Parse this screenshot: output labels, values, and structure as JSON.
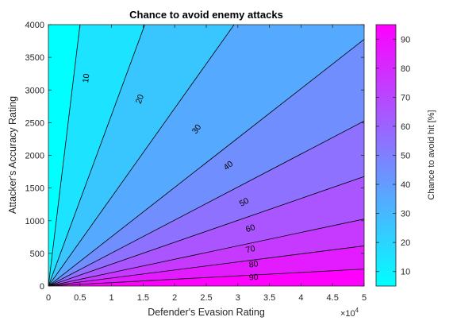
{
  "chart_data": {
    "type": "contourf",
    "title": "Chance to avoid enemy attacks",
    "xlabel": "Defender's Evasion Rating",
    "ylabel": "Attacker's Accuracy Rating",
    "xlim": [
      0,
      50000
    ],
    "ylim": [
      0,
      4000
    ],
    "x_ticks": [
      0,
      5000,
      10000,
      15000,
      20000,
      25000,
      30000,
      35000,
      40000,
      45000,
      50000
    ],
    "x_tick_labels": [
      "0",
      "0.5",
      "1",
      "1.5",
      "2",
      "2.5",
      "3",
      "3.5",
      "4",
      "4.5",
      "5"
    ],
    "x_exponent": {
      "base": "×10",
      "power": "4"
    },
    "y_ticks": [
      0,
      500,
      1000,
      1500,
      2000,
      2500,
      3000,
      3500,
      4000
    ],
    "y_tick_labels": [
      "0",
      "500",
      "1000",
      "1500",
      "2000",
      "2500",
      "3000",
      "3500",
      "4000"
    ],
    "contour_levels": [
      10,
      20,
      30,
      40,
      50,
      60,
      70,
      80,
      90
    ],
    "contour_labels": [
      "10",
      "20",
      "30",
      "40",
      "50",
      "60",
      "70",
      "80",
      "90"
    ],
    "contour_label_positions": [
      {
        "level": 10,
        "x": 6000,
        "y": 3180
      },
      {
        "level": 20,
        "x": 14500,
        "y": 2860
      },
      {
        "level": 30,
        "x": 23500,
        "y": 2400
      },
      {
        "level": 40,
        "x": 28500,
        "y": 1840
      },
      {
        "level": 50,
        "x": 31000,
        "y": 1280
      },
      {
        "level": 60,
        "x": 32000,
        "y": 880
      },
      {
        "level": 70,
        "x": 32000,
        "y": 560
      },
      {
        "level": 80,
        "x": 32500,
        "y": 330
      },
      {
        "level": 90,
        "x": 32500,
        "y": 130
      }
    ],
    "contour_slope_ratios": {
      "10": 0.8,
      "20": 0.262,
      "30": 0.136,
      "40": 0.0755,
      "50": 0.0505,
      "60": 0.0335,
      "70": 0.0205,
      "80": 0.0123,
      "90": 0.0052
    },
    "colorbar": {
      "label": "Chance to avoid hit [%]",
      "range": [
        5,
        95
      ],
      "ticks": [
        10,
        20,
        30,
        40,
        50,
        60,
        70,
        80,
        90
      ],
      "tick_labels": [
        "10",
        "20",
        "30",
        "40",
        "50",
        "60",
        "70",
        "80",
        "90"
      ],
      "colormap": "cool",
      "color_low": "#00ffff",
      "color_high": "#ff00ff"
    },
    "grid": false,
    "legend": "none"
  }
}
